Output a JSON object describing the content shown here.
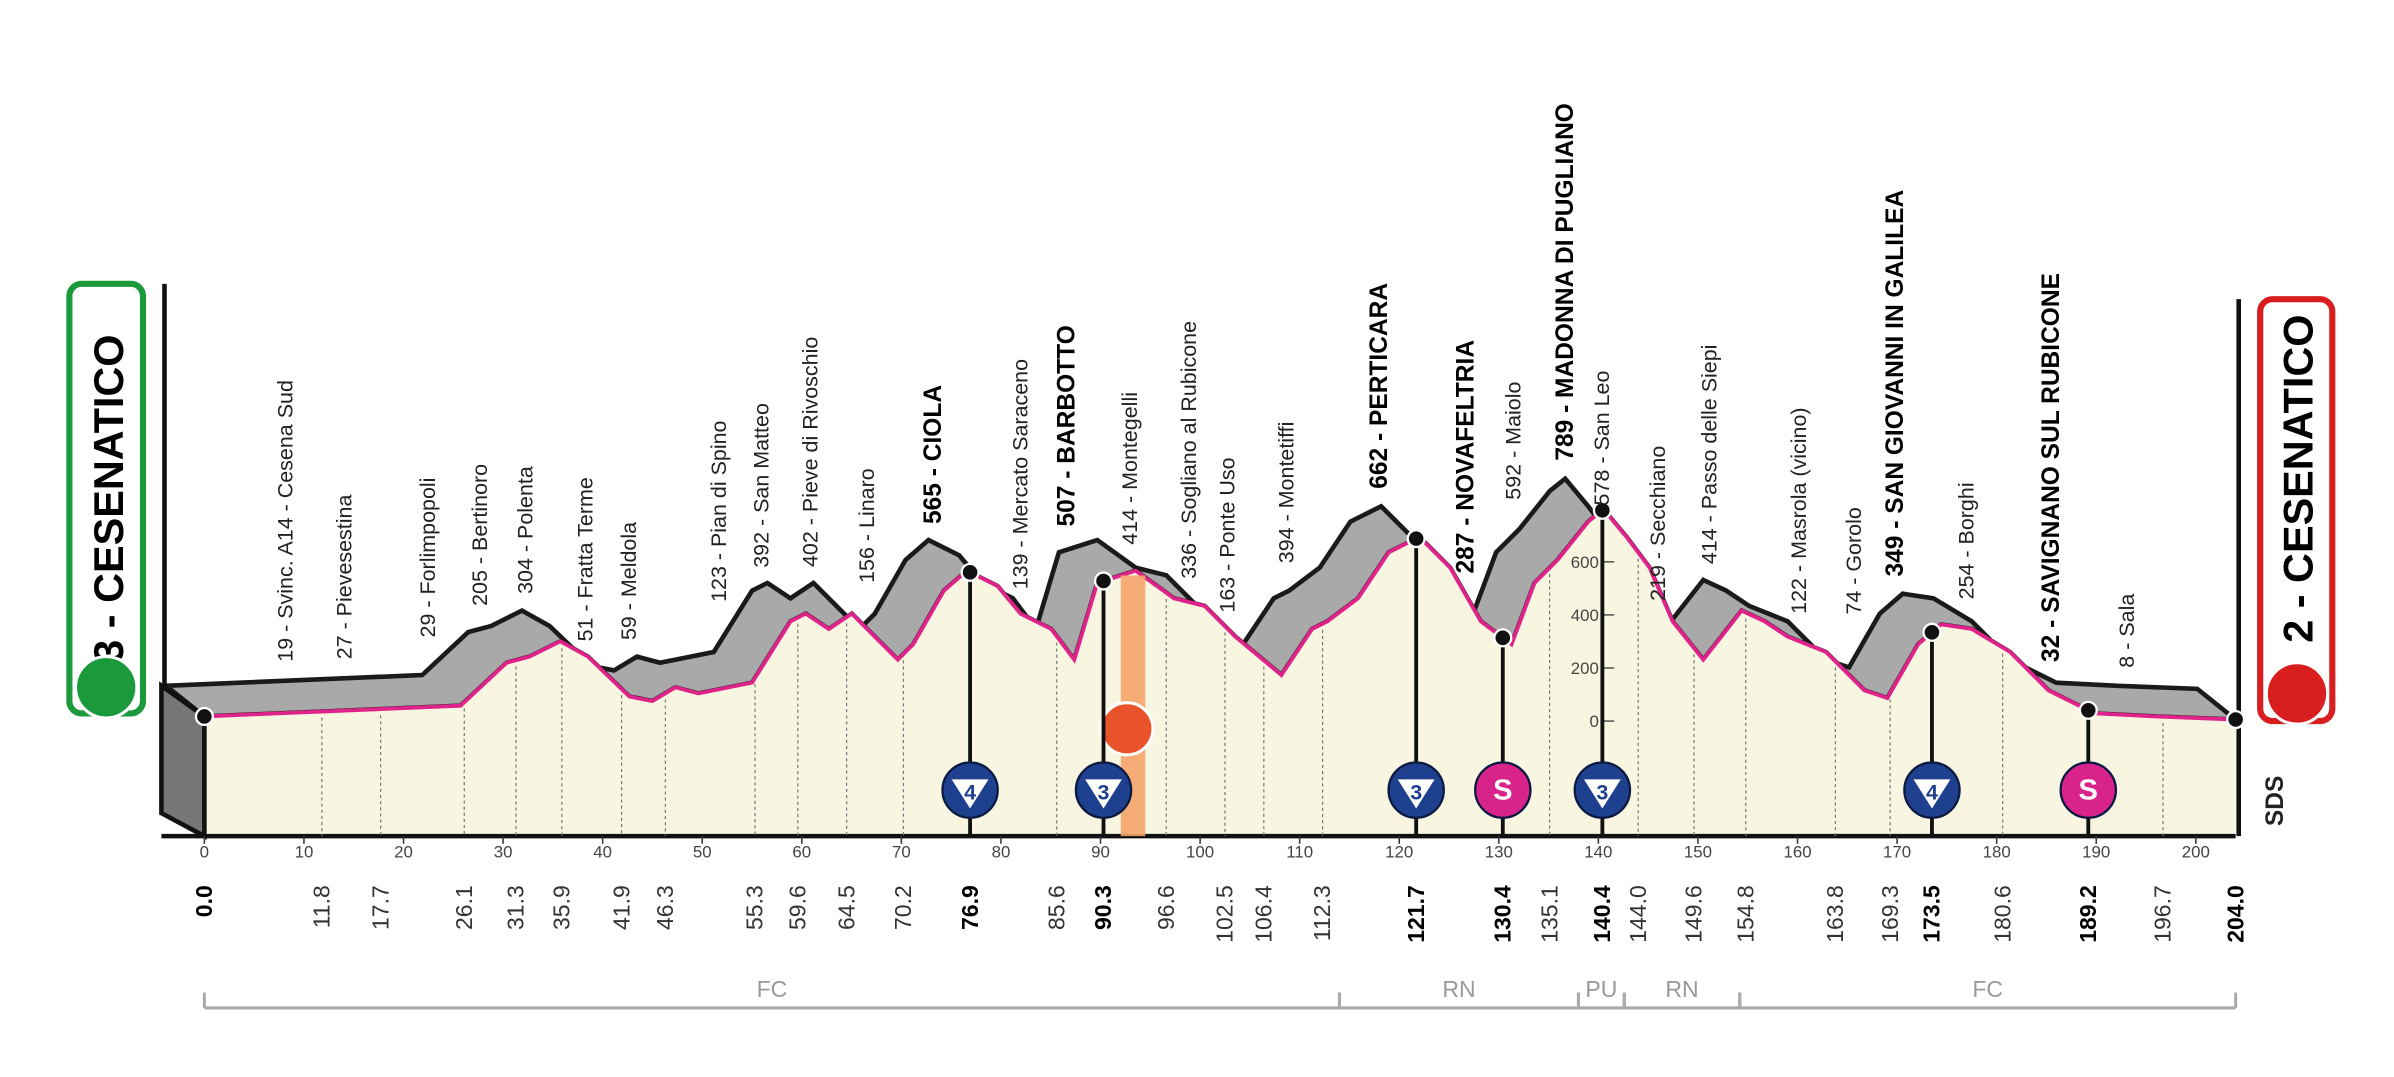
{
  "start": {
    "label": "3 - CESENATICO",
    "km": "0.0"
  },
  "finish": {
    "label": "2 - CESENATICO",
    "km": "204.0"
  },
  "waypoints": [
    {
      "label": "19 - Svinc. A14 - Cesena Sud",
      "km": "11.8",
      "bold": false
    },
    {
      "label": "27 - Pievesestina",
      "km": "17.7",
      "bold": false
    },
    {
      "label": "29 - Forlimpopoli",
      "km": "26.1",
      "bold": false
    },
    {
      "label": "205 - Bertinoro",
      "km": "31.3",
      "bold": false
    },
    {
      "label": "304 - Polenta",
      "km": "35.9",
      "bold": false
    },
    {
      "label": "51 - Fratta Terme",
      "km": "41.9",
      "bold": false
    },
    {
      "label": "59 - Meldola",
      "km": "46.3",
      "bold": false
    },
    {
      "label": "123 - Pian di Spino",
      "km": "55.3",
      "bold": false
    },
    {
      "label": "392 - San Matteo",
      "km": "59.6",
      "bold": false
    },
    {
      "label": "402 - Pieve di Rivoschio",
      "km": "64.5",
      "bold": false
    },
    {
      "label": "156 - Linaro",
      "km": "70.2",
      "bold": false
    },
    {
      "label": "565 - CIOLA",
      "km": "76.9",
      "bold": true
    },
    {
      "label": "139 - Mercato Saraceno",
      "km": "85.6",
      "bold": false
    },
    {
      "label": "507 - BARBOTTO",
      "km": "90.3",
      "bold": true
    },
    {
      "label": "414 - Montegelli",
      "km": "96.6",
      "bold": false
    },
    {
      "label": "336 - Sogliano al Rubicone",
      "km": "102.5",
      "bold": false
    },
    {
      "label": "163 - Ponte Uso",
      "km": "106.4",
      "bold": false
    },
    {
      "label": "394 - Montetiffi",
      "km": "112.3",
      "bold": false
    },
    {
      "label": "662 - PERTICARA",
      "km": "121.7",
      "bold": true
    },
    {
      "label": "287 - NOVAFELTRIA",
      "km": "130.4",
      "bold": true
    },
    {
      "label": "592 - Maiolo",
      "km": "135.1",
      "bold": false
    },
    {
      "label": "789 - MADONNA DI PUGLIANO",
      "km": "140.4",
      "bold": true
    },
    {
      "label": "578 - San Leo",
      "km": "144.0",
      "bold": false
    },
    {
      "label": "219 - Secchiano",
      "km": "149.6",
      "bold": false
    },
    {
      "label": "414 - Passo delle Siepi",
      "km": "154.8",
      "bold": false
    },
    {
      "label": "122 - Masrola (vicino)",
      "km": "163.8",
      "bold": false
    },
    {
      "label": "74 - Gorolo",
      "km": "169.3",
      "bold": false
    },
    {
      "label": "349 - SAN GIOVANNI IN GALILEA",
      "km": "173.5",
      "bold": true
    },
    {
      "label": "254 - Borghi",
      "km": "180.6",
      "bold": false
    },
    {
      "label": "32 - SAVIGNANO SUL RUBICONE",
      "km": "189.2",
      "bold": true
    },
    {
      "label": "8 - Sala",
      "km": "196.7",
      "bold": false
    }
  ],
  "km_ticks": [
    0,
    10,
    20,
    30,
    40,
    50,
    60,
    70,
    80,
    90,
    100,
    110,
    120,
    130,
    140,
    150,
    160,
    170,
    180,
    190,
    200
  ],
  "altitude_ticks": [
    0,
    200,
    400,
    600
  ],
  "climbs": [
    {
      "km": 76.9,
      "category": "4",
      "kind": "gpm"
    },
    {
      "km": 90.3,
      "category": "3",
      "kind": "gpm"
    },
    {
      "km": 121.7,
      "category": "3",
      "kind": "gpm"
    },
    {
      "km": 130.4,
      "category": "S",
      "kind": "sprint"
    },
    {
      "km": 140.4,
      "category": "3",
      "kind": "gpm"
    },
    {
      "km": 173.5,
      "category": "4",
      "kind": "gpm"
    },
    {
      "km": 189.2,
      "category": "S",
      "kind": "sprint"
    }
  ],
  "sections": [
    {
      "label": "FC",
      "from": 0,
      "to": 114
    },
    {
      "label": "RN",
      "from": 114,
      "to": 138
    },
    {
      "label": "PU",
      "from": 138,
      "to": 142.6
    },
    {
      "label": "RN",
      "from": 142.6,
      "to": 154.2
    },
    {
      "label": "FC",
      "from": 154.2,
      "to": 204
    }
  ],
  "logo": "SDS"
}
